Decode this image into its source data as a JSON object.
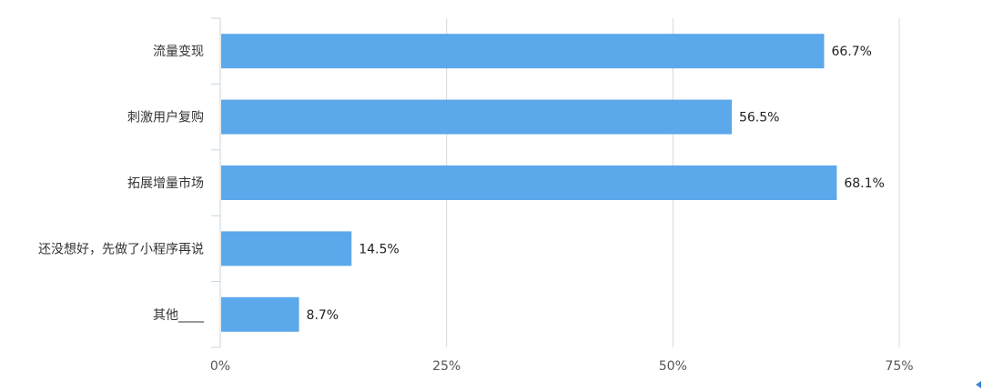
{
  "chart_data": {
    "type": "bar",
    "orientation": "horizontal",
    "categories": [
      "流量变现",
      "刺激用户复购",
      "拓展增量市场",
      "还没想好，先做了小程序再说",
      "其他____"
    ],
    "values": [
      66.7,
      56.5,
      68.1,
      14.5,
      8.7
    ],
    "value_labels": [
      "66.7%",
      "56.5%",
      "68.1%",
      "14.5%",
      "8.7%"
    ],
    "xlim": [
      0,
      75
    ],
    "xticks": [
      0,
      25,
      50,
      75
    ],
    "xtick_labels": [
      "0%",
      "25%",
      "50%",
      "75%"
    ],
    "grid": true,
    "bar_color": "#5ba8ea",
    "title": "",
    "xlabel": "",
    "ylabel": ""
  }
}
